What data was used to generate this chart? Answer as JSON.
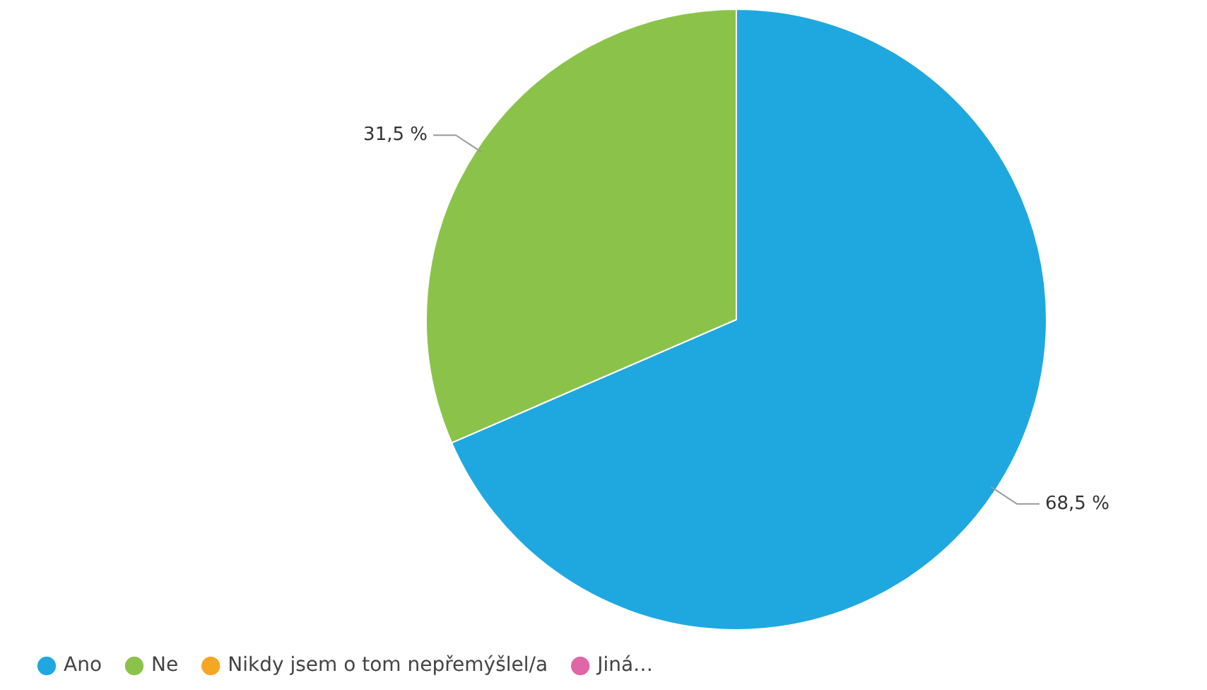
{
  "chart_data": {
    "type": "pie",
    "categories": [
      "Ano",
      "Ne",
      "Nikdy jsem o tom nepřemýšlel/a",
      "Jiná…"
    ],
    "values": [
      68.5,
      31.5,
      0,
      0
    ],
    "colors": [
      "#1fa8e0",
      "#8bc34a",
      "#f5a623",
      "#e066a8"
    ],
    "value_labels": [
      "68,5 %",
      "31,5 %",
      null,
      null
    ],
    "legend": "bottom left"
  }
}
